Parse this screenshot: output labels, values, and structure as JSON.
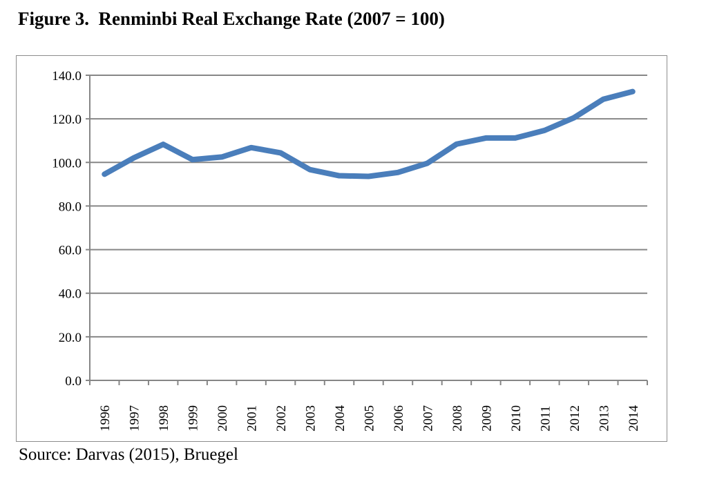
{
  "title": "Figure 3.  Renminbi Real Exchange Rate (2007 = 100)",
  "source": "Source: Darvas (2015), Bruegel",
  "colors": {
    "line": "#4a7ebb",
    "grid": "#868686"
  },
  "chart_data": {
    "type": "line",
    "title": "Figure 3.  Renminbi Real Exchange Rate (2007 = 100)",
    "xlabel": "",
    "ylabel": "",
    "categories": [
      "1996",
      "1997",
      "1998",
      "1999",
      "2000",
      "2001",
      "2002",
      "2003",
      "2004",
      "2005",
      "2006",
      "2007",
      "2008",
      "2009",
      "2010",
      "2011",
      "2012",
      "2013",
      "2014"
    ],
    "series": [
      {
        "name": "Renminbi real exchange rate",
        "values": [
          94.6,
          102.1,
          108.3,
          101.3,
          102.5,
          106.8,
          104.4,
          96.7,
          93.9,
          93.6,
          95.4,
          99.6,
          108.4,
          111.2,
          111.2,
          114.7,
          120.5,
          129.0,
          132.5
        ]
      }
    ],
    "ylim": [
      0,
      140
    ],
    "yticks": [
      "0.0",
      "20.0",
      "40.0",
      "60.0",
      "80.0",
      "100.0",
      "120.0",
      "140.0"
    ],
    "grid": true,
    "legend": "none"
  }
}
